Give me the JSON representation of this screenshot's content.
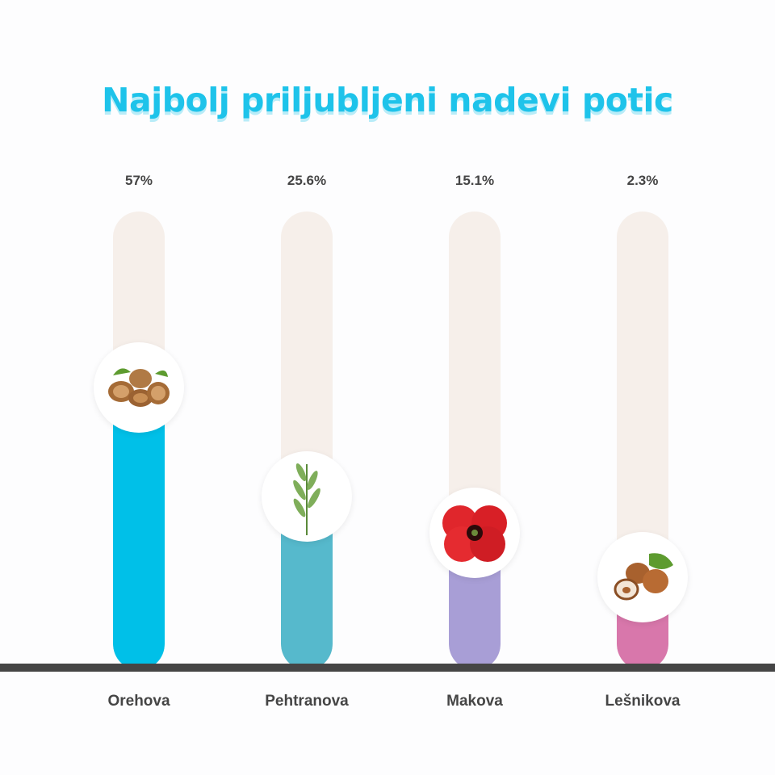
{
  "chart_data": {
    "type": "bar",
    "title": "Najbolj priljubljeni nadevi potic",
    "categories": [
      "Orehova",
      "Pehtranova",
      "Makova",
      "Lešnikova"
    ],
    "values": [
      57,
      25.6,
      15.1,
      2.3
    ],
    "value_labels": [
      "57%",
      "25.6%",
      "15.1%",
      "2.3%"
    ],
    "icons": [
      "walnut-icon",
      "tarragon-icon",
      "poppy-icon",
      "hazelnut-icon"
    ],
    "colors": [
      "#00c0e8",
      "#56b9cc",
      "#a89ed6",
      "#d877ab"
    ],
    "track_color": "#f6efea",
    "ylim": [
      0,
      100
    ],
    "xlabel": "",
    "ylabel": "",
    "grid": false
  }
}
